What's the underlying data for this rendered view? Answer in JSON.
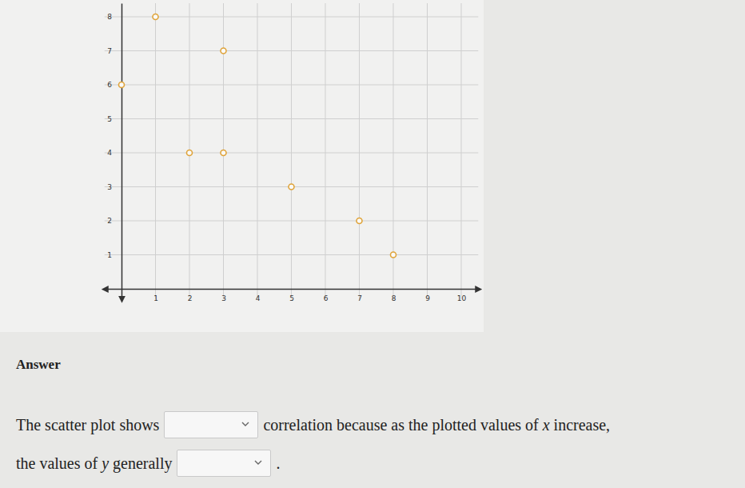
{
  "chart_data": {
    "type": "scatter",
    "x": [
      0,
      1,
      2,
      3,
      3,
      5,
      7,
      8
    ],
    "values": [
      6,
      8,
      4,
      7,
      4,
      3,
      2,
      1
    ],
    "color": "#e0a43a",
    "marker": "circle",
    "xlim": [
      -0.5,
      10.5
    ],
    "ylim": [
      -0.3,
      8.4
    ],
    "xticks": [
      1,
      2,
      3,
      4,
      5,
      6,
      7,
      8,
      9,
      10
    ],
    "yticks": [
      1,
      2,
      3,
      4,
      5,
      6,
      7,
      8
    ],
    "grid": true
  },
  "answer": {
    "heading": "Answer",
    "sentence_parts": [
      "The scatter plot shows",
      "correlation because as the plotted values of ",
      "x",
      " increase,",
      "the values of ",
      "y",
      " generally",
      "."
    ]
  }
}
